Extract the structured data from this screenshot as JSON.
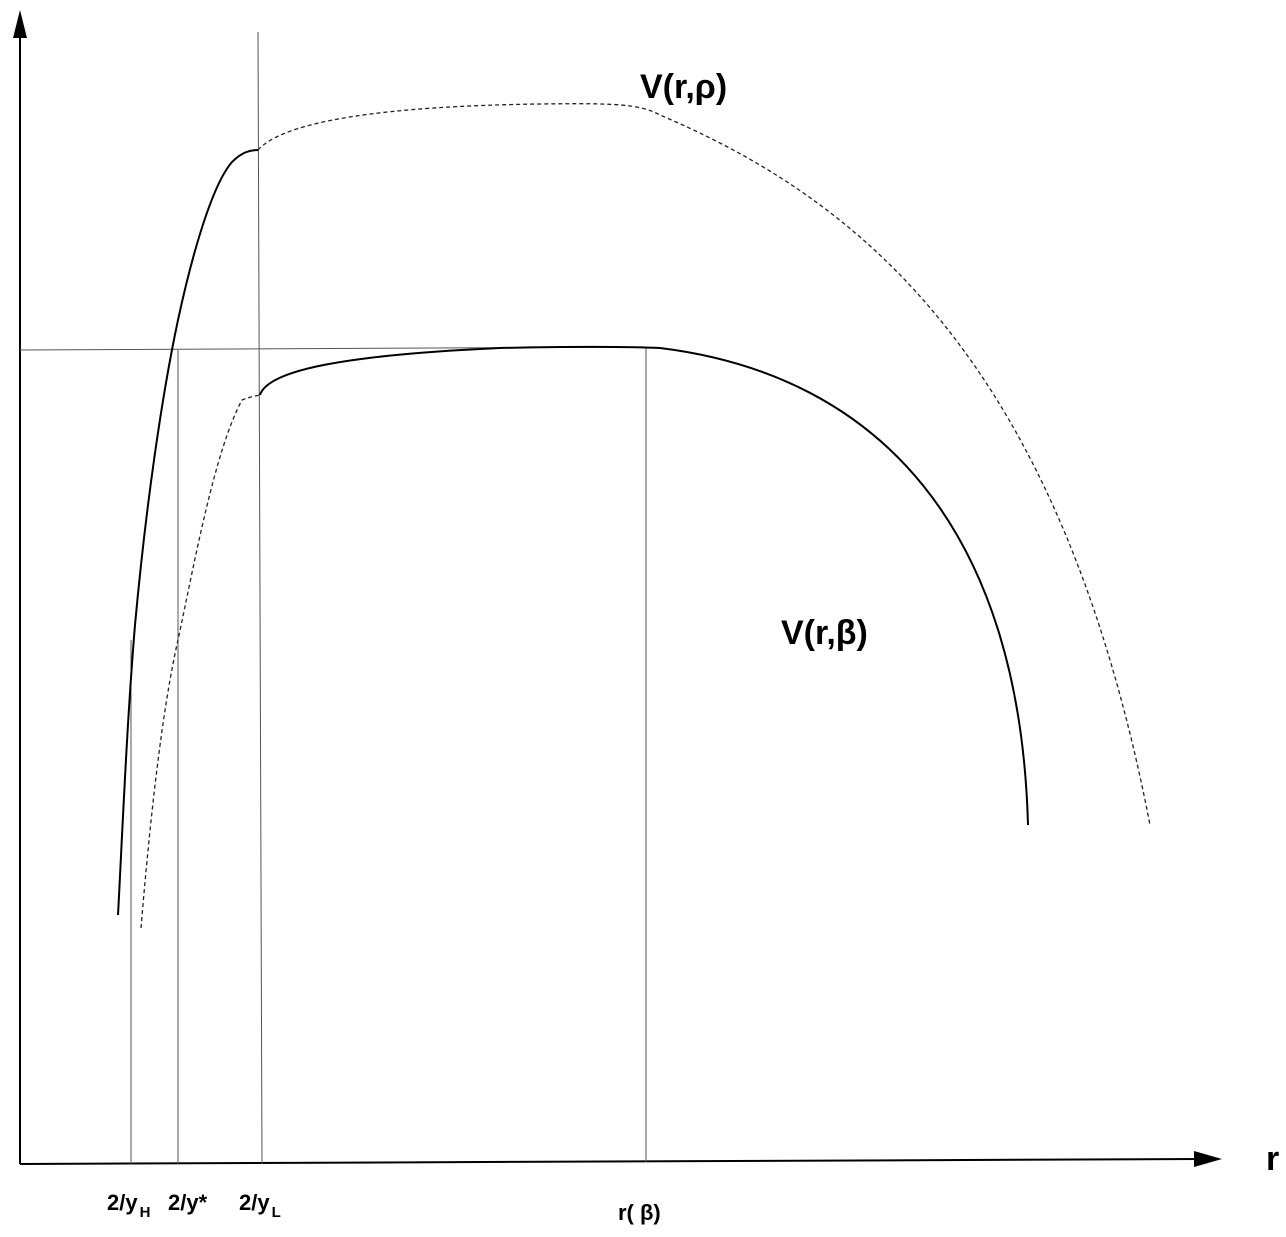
{
  "figure": {
    "curve_rho_label": "V(r,ρ)",
    "curve_beta_label": "V(r,β)",
    "axis_x_label": "r",
    "ticks": {
      "yH": {
        "main": "2/y",
        "sub": "H"
      },
      "ystar": {
        "main": "2/y*"
      },
      "yL": {
        "main": "2/y",
        "sub": "L"
      },
      "rbeta": {
        "main": "r( β)"
      }
    }
  }
}
